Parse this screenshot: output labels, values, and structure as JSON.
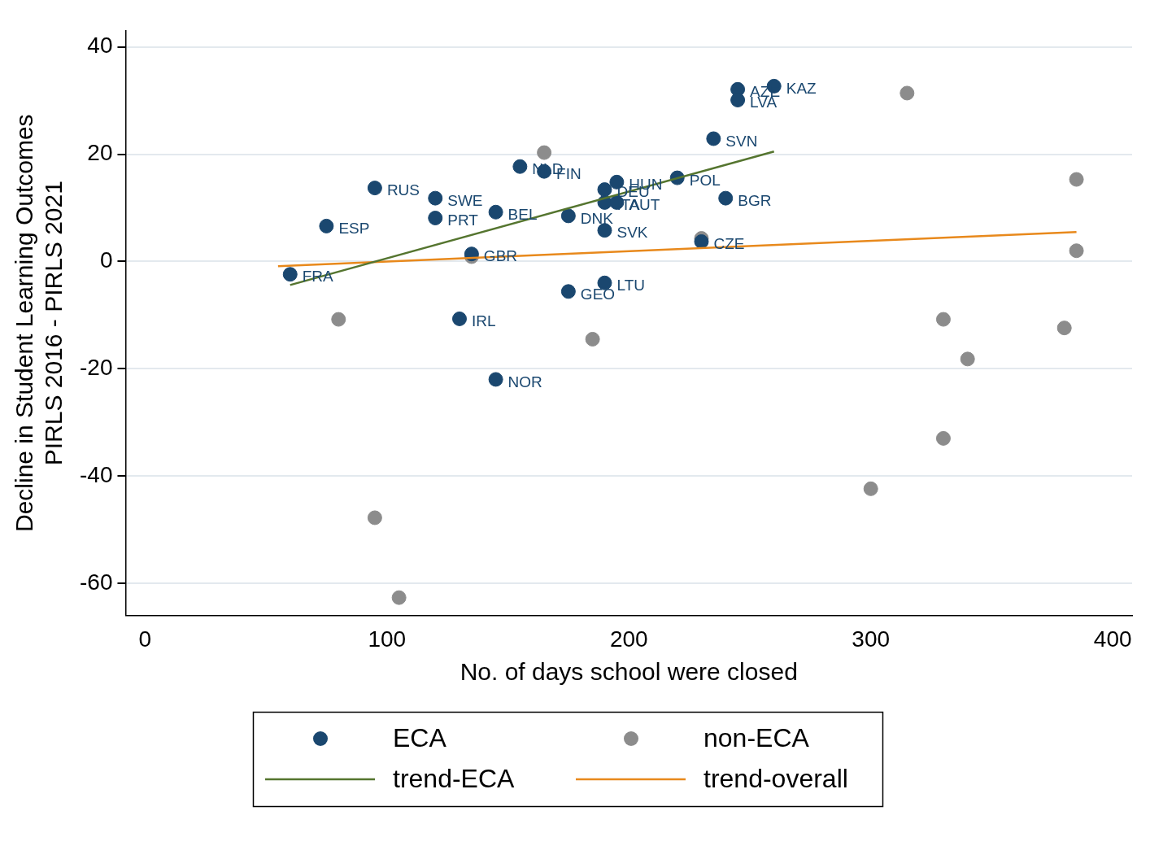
{
  "chart_data": {
    "type": "scatter",
    "x_label": "No. of days school were closed",
    "y_label": [
      "Decline in Student Learning Outcomes",
      "PIRLS 2016 - PIRLS 2021"
    ],
    "xlim": [
      -8,
      408
    ],
    "ylim": [
      -66,
      43
    ],
    "xticks": [
      0,
      100,
      200,
      300,
      400
    ],
    "yticks": [
      -60,
      -40,
      -20,
      0,
      20,
      40
    ],
    "grid": true,
    "legend": "bottom",
    "series": [
      {
        "name": "ECA",
        "color": "#1a476f",
        "marker": "circle",
        "x": [
          60,
          75,
          95,
          120,
          120,
          135,
          130,
          145,
          145,
          155,
          165,
          175,
          175,
          195,
          190,
          190,
          195,
          190,
          190,
          220,
          235,
          240,
          245,
          245,
          260,
          230
        ],
        "values": [
          -2.4,
          6.6,
          13.7,
          11.8,
          8.1,
          1.4,
          -10.7,
          9.2,
          -22,
          17.7,
          16.8,
          8.5,
          -5.6,
          14.8,
          13.4,
          11.0,
          11.0,
          5.8,
          -4.0,
          15.6,
          22.9,
          11.8,
          32.1,
          30.1,
          32.7,
          3.7
        ],
        "labels": [
          "FRA",
          "ESP",
          "RUS",
          "SWE",
          "PRT",
          "GBR",
          "IRL",
          "BEL",
          "NOR",
          "NLD",
          "FIN",
          "DNK",
          "GEO",
          "HUN",
          "DEU",
          "ITA",
          "AUT",
          "SVK",
          "LTU",
          "POL",
          "SVN",
          "BGR",
          "AZE",
          "LVA",
          "KAZ",
          "CZE"
        ]
      },
      {
        "name": "non-ECA",
        "color": "#8c8c8c",
        "marker": "circle",
        "x": [
          165,
          135,
          80,
          95,
          105,
          185,
          230,
          300,
          315,
          330,
          330,
          340,
          380,
          385,
          385
        ],
        "values": [
          20.3,
          0.9,
          -10.8,
          -47.8,
          -62.7,
          -14.5,
          4.3,
          -42.4,
          31.4,
          -10.8,
          -33,
          -18.2,
          -12.4,
          15.3,
          2.0
        ]
      },
      {
        "name": "trend-ECA",
        "type": "line",
        "color": "#55752f",
        "marker": "none",
        "line_style": "solid",
        "x": [
          60,
          260
        ],
        "values": [
          -4.4,
          20.5
        ]
      },
      {
        "name": "trend-overall",
        "type": "line",
        "color": "#e8891c",
        "marker": "none",
        "line_style": "solid",
        "x": [
          55,
          385
        ],
        "values": [
          -0.9,
          5.5
        ]
      }
    ]
  }
}
